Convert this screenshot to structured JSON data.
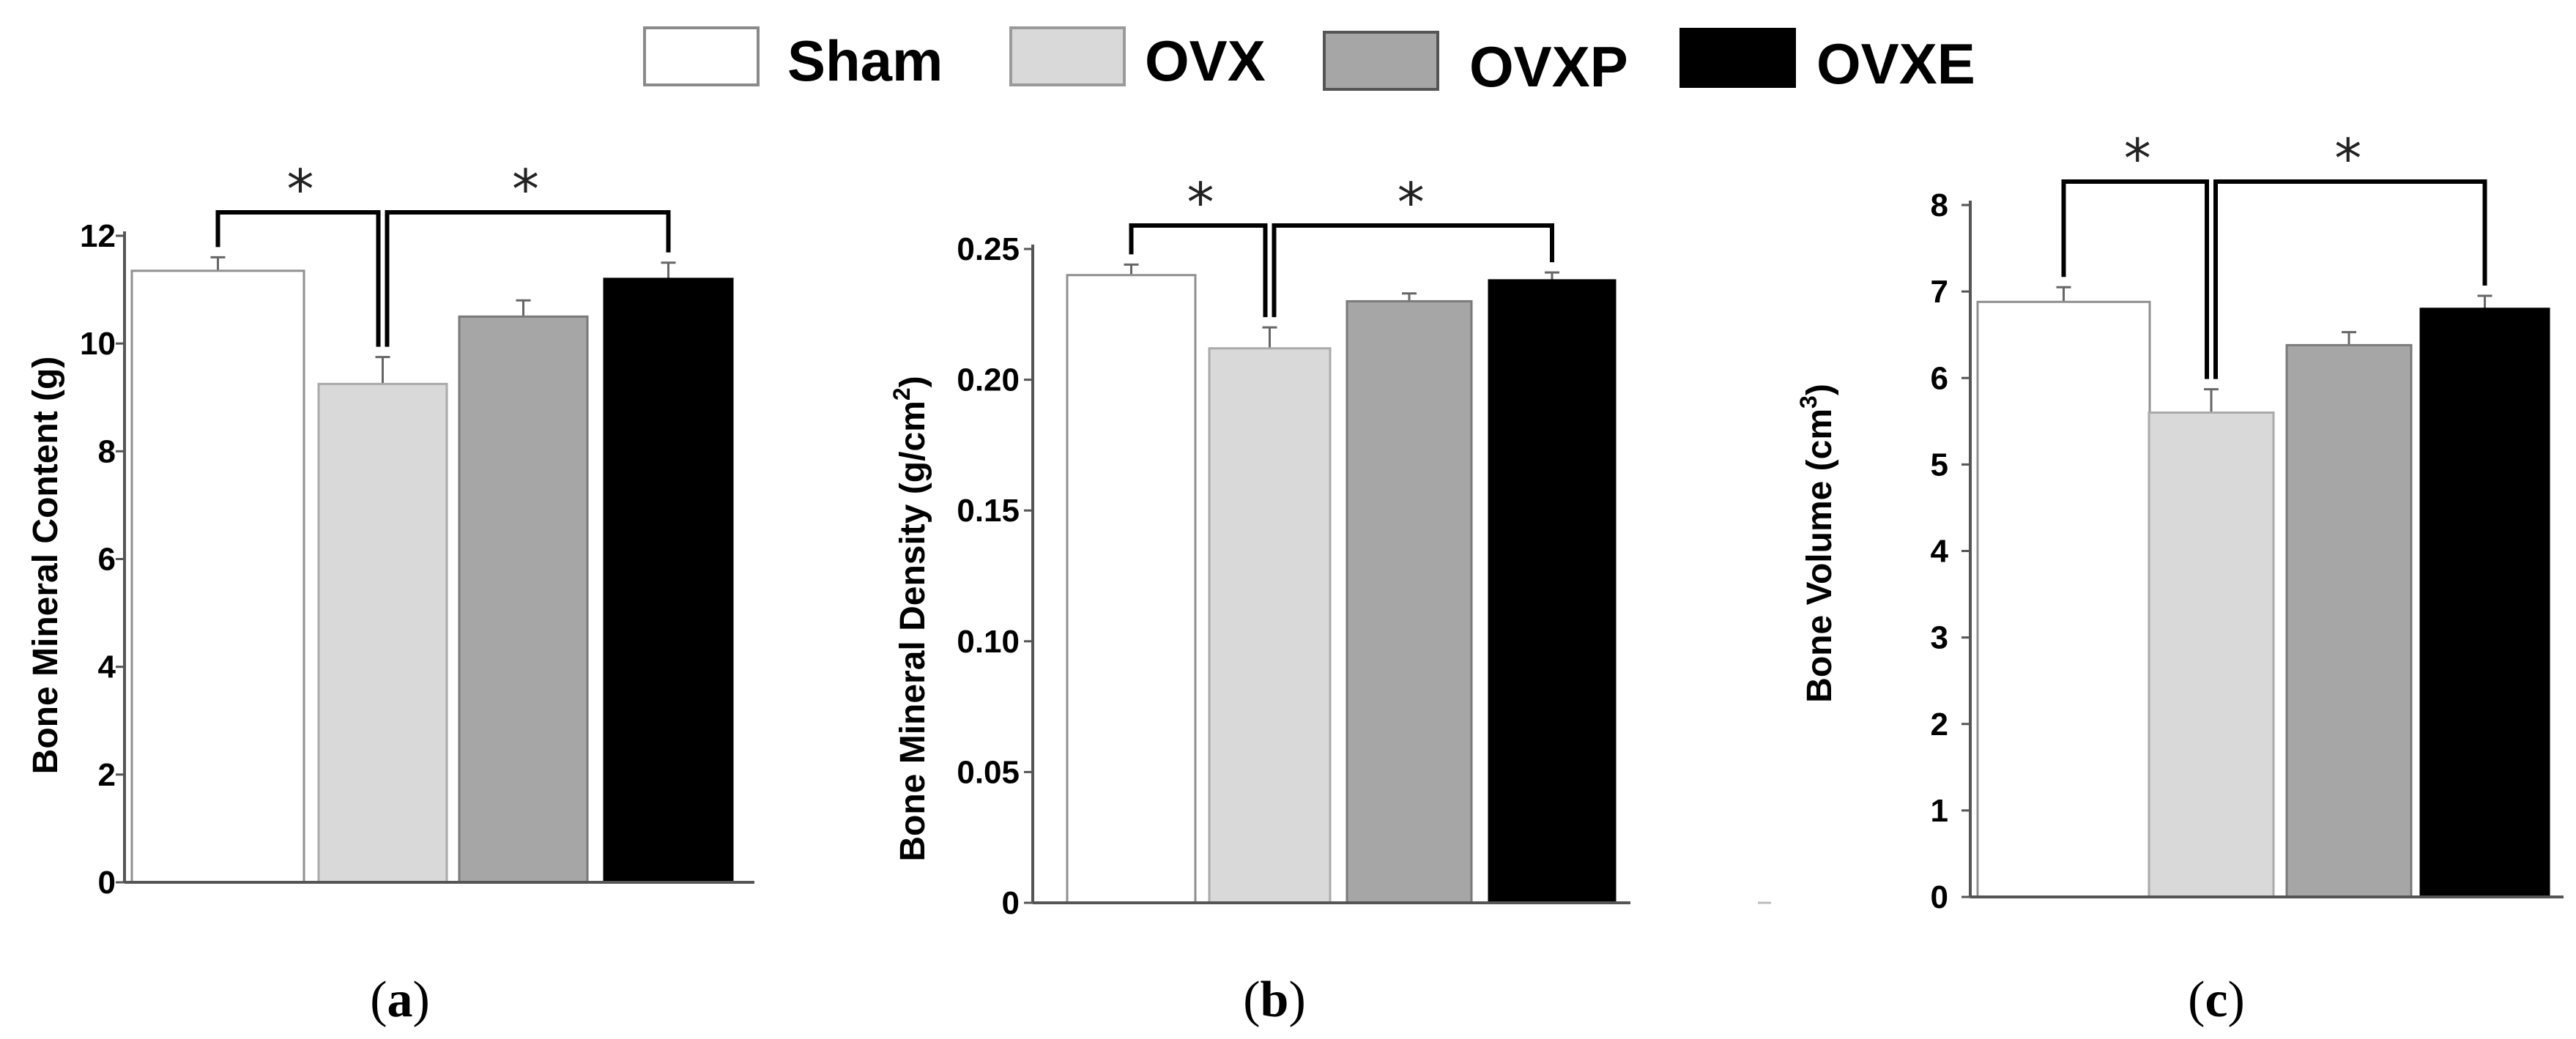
{
  "legend": [
    {
      "label": "Sham",
      "color": "#ffffff"
    },
    {
      "label": "OVX",
      "color": "#d9d9d9"
    },
    {
      "label": "OVXP",
      "color": "#a6a6a6"
    },
    {
      "label": "OVXE",
      "color": "#000000"
    }
  ],
  "significance_marker": "*",
  "chart_data": [
    {
      "type": "bar",
      "panel": "a",
      "panel_label": {
        "open": "(",
        "letter": "a",
        "close": ")"
      },
      "categories": [
        "Sham",
        "OVX",
        "OVXP",
        "OVXE"
      ],
      "values": [
        11.35,
        9.25,
        10.5,
        11.2
      ],
      "errors": [
        0.25,
        0.5,
        0.3,
        0.3
      ],
      "colors": [
        "#ffffff",
        "#d9d9d9",
        "#a6a6a6",
        "#000000"
      ],
      "ylabel": {
        "main": "Bone Mineral Content (g)",
        "sup": ""
      },
      "ylim": [
        0,
        12
      ],
      "yticks": [
        "0",
        "2",
        "4",
        "6",
        "8",
        "10",
        "12"
      ],
      "significance": [
        {
          "from": "Sham",
          "to": "OVX",
          "label": "*"
        },
        {
          "from": "OVX",
          "to": "OVXE",
          "label": "*"
        }
      ]
    },
    {
      "type": "bar",
      "panel": "b",
      "panel_label": {
        "open": "(",
        "letter": "b",
        "close": ")"
      },
      "categories": [
        "Sham",
        "OVX",
        "OVXP",
        "OVXE"
      ],
      "values": [
        0.24,
        0.212,
        0.23,
        0.238
      ],
      "errors": [
        0.004,
        0.008,
        0.003,
        0.003
      ],
      "colors": [
        "#ffffff",
        "#d9d9d9",
        "#a6a6a6",
        "#000000"
      ],
      "ylabel": {
        "main": "Bone Mineral Density (g/cm",
        "sup": "2",
        "end": ")"
      },
      "ylim": [
        0,
        0.25
      ],
      "yticks": [
        "0",
        "0.05",
        "0.10",
        "0.15",
        "0.20",
        "0.25"
      ],
      "significance": [
        {
          "from": "Sham",
          "to": "OVX",
          "label": "*"
        },
        {
          "from": "OVX",
          "to": "OVXE",
          "label": "*"
        }
      ]
    },
    {
      "type": "bar",
      "panel": "c",
      "panel_label": {
        "open": "(",
        "letter": "c",
        "close": ")"
      },
      "categories": [
        "Sham",
        "OVX",
        "OVXP",
        "OVXE"
      ],
      "values": [
        6.88,
        5.6,
        6.38,
        6.8
      ],
      "errors": [
        0.17,
        0.27,
        0.15,
        0.15
      ],
      "colors": [
        "#ffffff",
        "#d9d9d9",
        "#a6a6a6",
        "#000000"
      ],
      "ylabel": {
        "main": "Bone Volume (cm",
        "sup": "3",
        "end": ")"
      },
      "ylim": [
        0,
        8
      ],
      "yticks": [
        "0",
        "1",
        "2",
        "3",
        "4",
        "5",
        "6",
        "7",
        "8"
      ],
      "significance": [
        {
          "from": "Sham",
          "to": "OVX",
          "label": "*"
        },
        {
          "from": "OVX",
          "to": "OVXE",
          "label": "*"
        }
      ]
    }
  ]
}
